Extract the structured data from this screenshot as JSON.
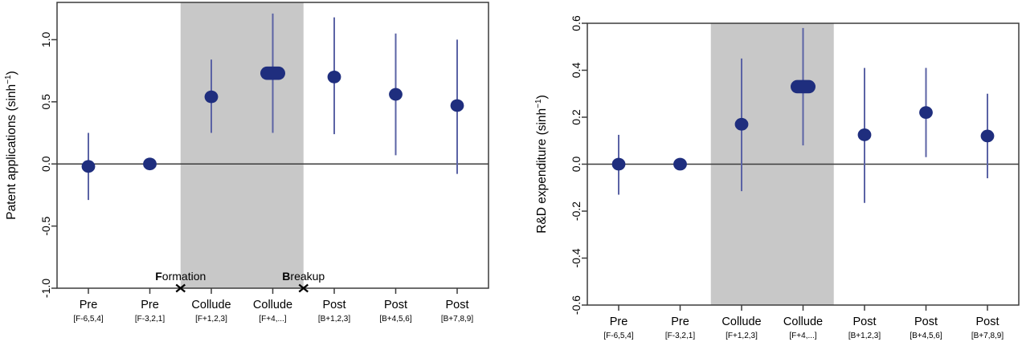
{
  "styles": {
    "background": "#ffffff",
    "point_color": "#1f2e7e",
    "whisker_color": "#5b63a5",
    "band_color": "#c8c8c8",
    "axis_color": "#3c3c3c",
    "event_mark_color": "#000000"
  },
  "chart_data": [
    {
      "id": "patent-applications",
      "type": "scatter",
      "title": "",
      "xlabel": "",
      "ylabel": "Patent applications (sinh⁻¹)",
      "ylim": [
        -1.0,
        1.3
      ],
      "yticks": [
        -1.0,
        -0.5,
        0.0,
        0.5,
        1.0
      ],
      "ytick_labels": [
        "-1.0",
        "-0.5",
        "0.0",
        "0.5",
        "1.0"
      ],
      "grid": false,
      "legend": "none",
      "zero_line": 0,
      "shaded_band": {
        "from_slot": 1.5,
        "to_slot": 3.5
      },
      "categories": [
        "Pre",
        "Pre",
        "Collude",
        "Collude",
        "Post",
        "Post",
        "Post"
      ],
      "category_sublabels": [
        "[F-6,5,4]",
        "[F-3,2,1]",
        "[F+1,2,3]",
        "[F+4,...]",
        "[B+1,2,3]",
        "[B+4,5,6]",
        "[B+7,8,9]"
      ],
      "series": [
        {
          "name": "estimate",
          "values": [
            -0.02,
            0.0,
            0.54,
            0.73,
            0.7,
            0.56,
            0.47
          ]
        },
        {
          "name": "ci_low",
          "values": [
            -0.29,
            -0.02,
            0.25,
            0.25,
            0.24,
            0.07,
            -0.08
          ]
        },
        {
          "name": "ci_high",
          "values": [
            0.25,
            0.02,
            0.84,
            1.21,
            1.18,
            1.05,
            1.0
          ]
        }
      ],
      "marker_styles": [
        "dot",
        "dot",
        "dot",
        "pill",
        "dot",
        "dot",
        "dot"
      ],
      "events": [
        {
          "label": "Formation",
          "at_slot": 1.5
        },
        {
          "label": "Breakup",
          "at_slot": 3.5
        }
      ]
    },
    {
      "id": "rd-expenditure",
      "type": "scatter",
      "title": "",
      "xlabel": "",
      "ylabel": "R&D expenditure (sinh⁻¹)",
      "ylim": [
        -0.6,
        0.6
      ],
      "yticks": [
        -0.6,
        -0.4,
        -0.2,
        0.0,
        0.2,
        0.4,
        0.6
      ],
      "ytick_labels": [
        "-0.6",
        "-0.4",
        "-0.2",
        "0.0",
        "0.2",
        "0.4",
        "0.6"
      ],
      "grid": false,
      "legend": "none",
      "zero_line": 0,
      "shaded_band": {
        "from_slot": 1.5,
        "to_slot": 3.5
      },
      "categories": [
        "Pre",
        "Pre",
        "Collude",
        "Collude",
        "Post",
        "Post",
        "Post"
      ],
      "category_sublabels": [
        "[F-6,5,4]",
        "[F-3,2,1]",
        "[F+1,2,3]",
        "[F+4,...]",
        "[B+1,2,3]",
        "[B+4,5,6]",
        "[B+7,8,9]"
      ],
      "series": [
        {
          "name": "estimate",
          "values": [
            0.0,
            0.0,
            0.17,
            0.33,
            0.125,
            0.22,
            0.12
          ]
        },
        {
          "name": "ci_low",
          "values": [
            -0.13,
            -0.01,
            -0.115,
            0.08,
            -0.165,
            0.03,
            -0.06
          ]
        },
        {
          "name": "ci_high",
          "values": [
            0.125,
            0.01,
            0.45,
            0.58,
            0.41,
            0.41,
            0.3
          ]
        }
      ],
      "marker_styles": [
        "dot",
        "dot",
        "dot",
        "pill",
        "dot",
        "dot",
        "dot"
      ],
      "events": []
    }
  ]
}
